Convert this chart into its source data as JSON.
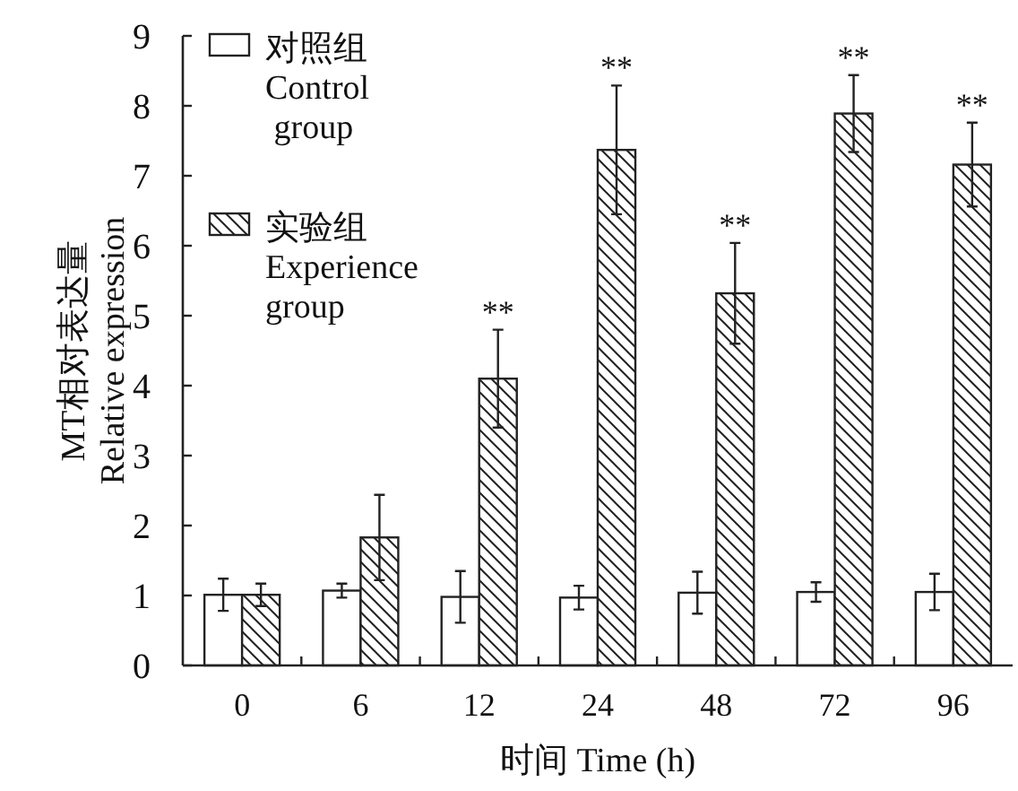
{
  "chart_data": {
    "type": "bar",
    "categories": [
      "0",
      "6",
      "12",
      "24",
      "48",
      "72",
      "96"
    ],
    "series": [
      {
        "name": "对照组\nControl\n group",
        "color": "#ffffff",
        "values": [
          1.01,
          1.07,
          0.98,
          0.97,
          1.04,
          1.05,
          1.05
        ],
        "errors": [
          0.23,
          0.1,
          0.37,
          0.17,
          0.3,
          0.14,
          0.26
        ]
      },
      {
        "name": "实验组\nExperience\ngroup",
        "color": "#222222",
        "values": [
          1.01,
          1.83,
          4.1,
          7.37,
          5.32,
          7.89,
          7.16
        ],
        "errors": [
          0.16,
          0.61,
          0.7,
          0.92,
          0.72,
          0.55,
          0.6
        ]
      }
    ],
    "xlabel": "时间 Time (h)",
    "ylabel": "MT相对表达量\nRelative expression",
    "ylim": [
      0,
      9
    ],
    "yticks": [
      0,
      1,
      2,
      3,
      4,
      5,
      6,
      7,
      8,
      9
    ],
    "legend": "top left",
    "annotations": [
      {
        "text": "**",
        "x": "12",
        "y": 4.1
      },
      {
        "text": "**",
        "x": "24",
        "y": 7.37
      },
      {
        "text": "**",
        "x": "48",
        "y": 5.32
      },
      {
        "text": "**",
        "x": "72",
        "y": 7.89
      },
      {
        "text": "**",
        "x": "96",
        "y": 7.16
      }
    ]
  }
}
